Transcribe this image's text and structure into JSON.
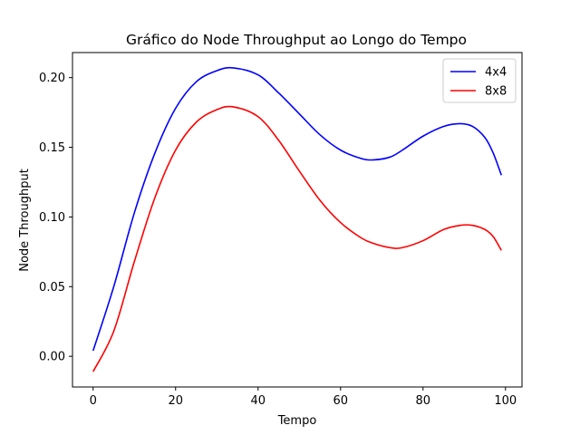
{
  "chart_data": {
    "type": "line",
    "title": "Gráfico do Node Throughput ao Longo do Tempo",
    "xlabel": "Tempo",
    "ylabel": "Node Throughput",
    "xlim": [
      -5,
      104
    ],
    "ylim": [
      -0.022,
      0.218
    ],
    "xticks": [
      0,
      20,
      40,
      60,
      80,
      100
    ],
    "xtick_labels": [
      "0",
      "20",
      "40",
      "60",
      "80",
      "100"
    ],
    "yticks": [
      0.0,
      0.05,
      0.1,
      0.15,
      0.2
    ],
    "ytick_labels": [
      "0.00",
      "0.05",
      "0.10",
      "0.15",
      "0.20"
    ],
    "grid": false,
    "legend_position": "top-right",
    "x": [
      0,
      5,
      10,
      15,
      20,
      25,
      30,
      34,
      40,
      45,
      50,
      55,
      60,
      65,
      68,
      72,
      75,
      80,
      85,
      89,
      92,
      95,
      97,
      99
    ],
    "series": [
      {
        "name": "4x4",
        "color": "#0000ff",
        "values": [
          0.004,
          0.05,
          0.103,
          0.146,
          0.178,
          0.197,
          0.205,
          0.207,
          0.202,
          0.189,
          0.174,
          0.159,
          0.148,
          0.142,
          0.141,
          0.143,
          0.148,
          0.158,
          0.165,
          0.167,
          0.165,
          0.157,
          0.146,
          0.13
        ]
      },
      {
        "name": "8x8",
        "color": "#ff0000",
        "values": [
          -0.011,
          0.018,
          0.068,
          0.114,
          0.148,
          0.168,
          0.177,
          0.179,
          0.172,
          0.155,
          0.133,
          0.112,
          0.096,
          0.085,
          0.081,
          0.078,
          0.078,
          0.083,
          0.091,
          0.094,
          0.094,
          0.091,
          0.086,
          0.076
        ]
      }
    ]
  }
}
